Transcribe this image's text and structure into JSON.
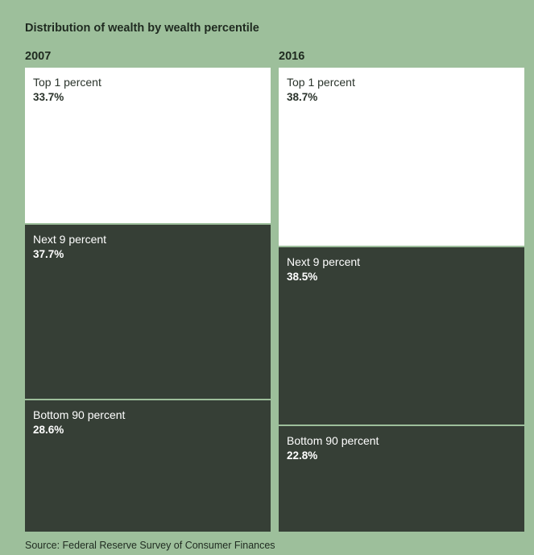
{
  "title": "Distribution of wealth by wealth percentile",
  "source": "Source: Federal Reserve Survey of Consumer Finances",
  "colors": {
    "background": "#9dbf9b",
    "top_segment": "#ffffff",
    "other_segments": "#363f36"
  },
  "chart_data": {
    "type": "bar",
    "subtype": "100% stacked columns",
    "title": "Distribution of wealth by wealth percentile",
    "categories": [
      "2007",
      "2016"
    ],
    "series": [
      {
        "name": "Top 1 percent",
        "values": [
          33.7,
          38.7
        ],
        "labels": [
          "33.7%",
          "38.7%"
        ]
      },
      {
        "name": "Next 9 percent",
        "values": [
          37.7,
          38.5
        ],
        "labels": [
          "37.7%",
          "38.5%"
        ]
      },
      {
        "name": "Bottom 90 percent",
        "values": [
          28.6,
          22.8
        ],
        "labels": [
          "28.6%",
          "22.8%"
        ]
      }
    ],
    "unit": "%",
    "grid": false,
    "legend": "none (labels inside segments)"
  }
}
